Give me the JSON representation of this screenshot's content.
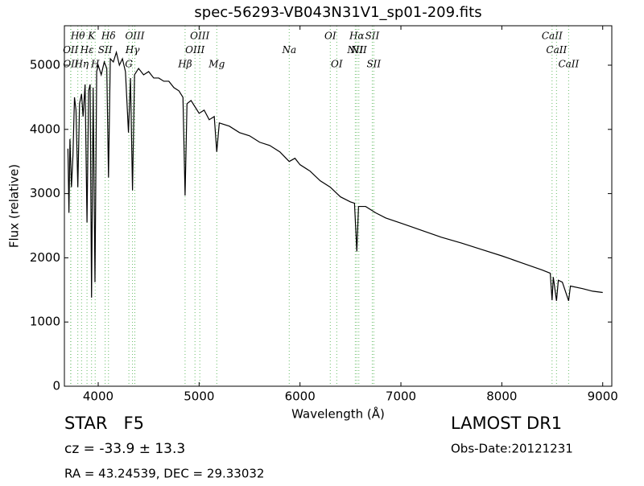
{
  "chart_data": {
    "type": "line",
    "title": "spec-56293-VB043N31V1_sp01-209.fits",
    "xlabel": "Wavelength (Å)",
    "ylabel": "Flux (relative)",
    "xlim": [
      3665,
      9090
    ],
    "ylim": [
      0,
      5614
    ],
    "xticks": [
      4000,
      5000,
      6000,
      7000,
      8000,
      9000
    ],
    "yticks": [
      0,
      1000,
      2000,
      3000,
      4000,
      5000
    ],
    "series": [
      {
        "color": "#000000",
        "x": [
          3700,
          3710,
          3720,
          3735,
          3750,
          3765,
          3780,
          3798,
          3815,
          3835,
          3850,
          3870,
          3889,
          3905,
          3920,
          3934,
          3950,
          3968,
          3985,
          4000,
          4030,
          4060,
          4085,
          4102,
          4120,
          4150,
          4180,
          4210,
          4240,
          4270,
          4300,
          4320,
          4340,
          4360,
          4400,
          4450,
          4500,
          4550,
          4600,
          4650,
          4700,
          4750,
          4800,
          4840,
          4861,
          4880,
          4920,
          4960,
          5000,
          5050,
          5100,
          5150,
          5175,
          5200,
          5300,
          5400,
          5500,
          5600,
          5700,
          5800,
          5893,
          5950,
          6000,
          6100,
          6200,
          6300,
          6400,
          6500,
          6540,
          6563,
          6580,
          6650,
          6750,
          6850,
          7000,
          7200,
          7400,
          7600,
          7800,
          8000,
          8200,
          8400,
          8480,
          8498,
          8510,
          8542,
          8560,
          8600,
          8662,
          8680,
          8800,
          8900,
          9000
        ],
        "values": [
          3700,
          2700,
          3850,
          3100,
          3600,
          4500,
          4300,
          3100,
          4400,
          4550,
          4200,
          4700,
          2550,
          4600,
          4700,
          1380,
          4650,
          1620,
          4900,
          5000,
          4850,
          5050,
          4950,
          3250,
          5100,
          5050,
          5200,
          5000,
          5100,
          4900,
          3950,
          4800,
          3050,
          4850,
          4950,
          4850,
          4900,
          4800,
          4800,
          4750,
          4750,
          4650,
          4600,
          4500,
          2970,
          4400,
          4450,
          4350,
          4250,
          4300,
          4150,
          4200,
          3650,
          4100,
          4050,
          3950,
          3900,
          3800,
          3750,
          3650,
          3500,
          3550,
          3450,
          3350,
          3200,
          3100,
          2950,
          2870,
          2850,
          2100,
          2800,
          2800,
          2700,
          2620,
          2540,
          2430,
          2320,
          2230,
          2130,
          2030,
          1920,
          1810,
          1760,
          1340,
          1700,
          1330,
          1650,
          1620,
          1330,
          1560,
          1520,
          1480,
          1460
        ]
      }
    ],
    "line_marks": {
      "color": "#66bb66",
      "labels": [
        "Hθ",
        "OII",
        "OII",
        "K",
        "Hε",
        "Hη",
        "Hδ",
        "SII",
        "H",
        "OIII",
        "Hγ",
        "G",
        "OIII",
        "OIII",
        "Hβ",
        "OI",
        "Na",
        "Mg",
        "Hα",
        "NII",
        "OI",
        "SII",
        "NII",
        "SII",
        "CaII",
        "CaII",
        "CaII"
      ],
      "wavelengths": [
        3798,
        3727,
        3729,
        3934,
        3889,
        3835,
        4102,
        4069,
        3970,
        4363,
        4340,
        4304,
        5007,
        4959,
        4861,
        6300,
        5893,
        5175,
        6563,
        6548,
        6364,
        6716,
        6583,
        6731,
        8498,
        8542,
        8662
      ]
    },
    "annotations": [
      "STAR   F5",
      "cz = -33.9 ± 13.3",
      "RA = 43.24539, DEC = 29.33032",
      "LAMOST DR1",
      "Obs-Date:20121231"
    ]
  }
}
